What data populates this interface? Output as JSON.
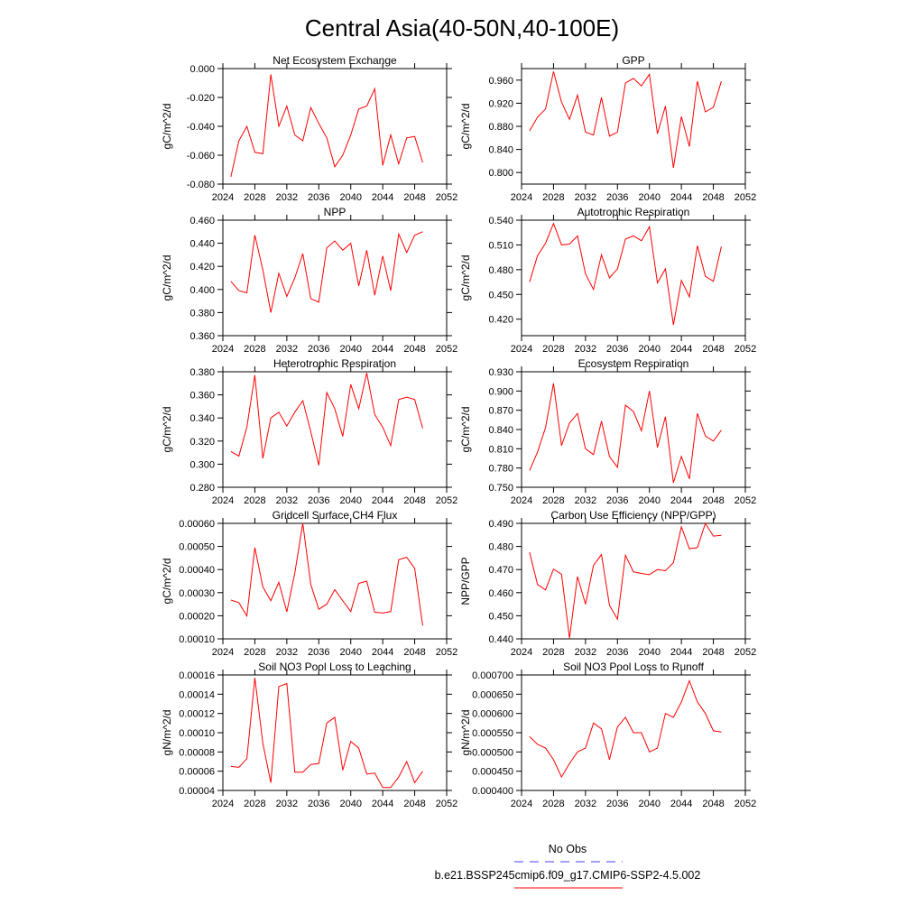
{
  "figure": {
    "title": "Central Asia(40-50N,40-100E)"
  },
  "colors": {
    "series_line": "#ff0000",
    "obs_line": "#4040ff",
    "frame": "#000000"
  },
  "legend": {
    "entries": [
      {
        "label": "No Obs",
        "style": "dashed",
        "color": "#4040ff"
      },
      {
        "label": "b.e21.BSSP245cmip6.f09_g17.CMIP6-SSP2-4.5.002",
        "style": "solid",
        "color": "#ff0000"
      }
    ]
  },
  "chart_data": [
    {
      "type": "line",
      "title": "Net Ecosystem Exchange",
      "ylabel": "gC/m^2/d",
      "xlim": [
        2024,
        2052
      ],
      "ylim": [
        -0.08,
        0.0
      ],
      "xticks": [
        2024,
        2028,
        2032,
        2036,
        2040,
        2044,
        2048,
        2052
      ],
      "yticks": [
        -0.08,
        -0.06,
        -0.04,
        -0.02,
        0.0
      ],
      "ytick_labels": [
        "-0.080",
        "-0.060",
        "-0.040",
        "-0.020",
        "0.000"
      ],
      "x": [
        2025,
        2026,
        2027,
        2028,
        2029,
        2030,
        2031,
        2032,
        2033,
        2034,
        2035,
        2036,
        2037,
        2038,
        2039,
        2040,
        2041,
        2042,
        2043,
        2044,
        2045,
        2046,
        2047,
        2048,
        2049
      ],
      "series": [
        {
          "name": "b.e21.BSSP245cmip6.f09_g17.CMIP6-SSP2-4.5.002",
          "values": [
            -0.075,
            -0.05,
            -0.04,
            -0.058,
            -0.059,
            -0.004,
            -0.04,
            -0.026,
            -0.046,
            -0.05,
            -0.027,
            -0.038,
            -0.048,
            -0.068,
            -0.06,
            -0.046,
            -0.028,
            -0.026,
            -0.014,
            -0.067,
            -0.046,
            -0.066,
            -0.048,
            -0.047,
            -0.065
          ]
        }
      ]
    },
    {
      "type": "line",
      "title": "GPP",
      "ylabel": "gC/m^2/d",
      "xlim": [
        2024,
        2052
      ],
      "ylim": [
        0.78,
        0.98
      ],
      "xticks": [
        2024,
        2028,
        2032,
        2036,
        2040,
        2044,
        2048,
        2052
      ],
      "yticks": [
        0.8,
        0.84,
        0.88,
        0.92,
        0.96
      ],
      "ytick_labels": [
        "0.800",
        "0.840",
        "0.880",
        "0.920",
        "0.960"
      ],
      "x": [
        2025,
        2026,
        2027,
        2028,
        2029,
        2030,
        2031,
        2032,
        2033,
        2034,
        2035,
        2036,
        2037,
        2038,
        2039,
        2040,
        2041,
        2042,
        2043,
        2044,
        2045,
        2046,
        2047,
        2048,
        2049
      ],
      "series": [
        {
          "name": "b.e21.BSSP245cmip6.f09_g17.CMIP6-SSP2-4.5.002",
          "values": [
            0.872,
            0.896,
            0.91,
            0.975,
            0.922,
            0.892,
            0.934,
            0.87,
            0.865,
            0.93,
            0.863,
            0.87,
            0.955,
            0.963,
            0.95,
            0.97,
            0.867,
            0.915,
            0.808,
            0.897,
            0.845,
            0.958,
            0.905,
            0.913,
            0.958
          ]
        }
      ]
    },
    {
      "type": "line",
      "title": "NPP",
      "ylabel": "gC/m^2/d",
      "xlim": [
        2024,
        2052
      ],
      "ylim": [
        0.36,
        0.46
      ],
      "xticks": [
        2024,
        2028,
        2032,
        2036,
        2040,
        2044,
        2048,
        2052
      ],
      "yticks": [
        0.36,
        0.38,
        0.4,
        0.42,
        0.44,
        0.46
      ],
      "ytick_labels": [
        "0.360",
        "0.380",
        "0.400",
        "0.420",
        "0.440",
        "0.460"
      ],
      "x": [
        2025,
        2026,
        2027,
        2028,
        2029,
        2030,
        2031,
        2032,
        2033,
        2034,
        2035,
        2036,
        2037,
        2038,
        2039,
        2040,
        2041,
        2042,
        2043,
        2044,
        2045,
        2046,
        2047,
        2048,
        2049
      ],
      "series": [
        {
          "name": "b.e21.BSSP245cmip6.f09_g17.CMIP6-SSP2-4.5.002",
          "values": [
            0.407,
            0.399,
            0.397,
            0.447,
            0.417,
            0.38,
            0.414,
            0.394,
            0.41,
            0.431,
            0.392,
            0.389,
            0.436,
            0.442,
            0.434,
            0.44,
            0.403,
            0.434,
            0.395,
            0.429,
            0.399,
            0.448,
            0.432,
            0.447,
            0.45
          ]
        }
      ]
    },
    {
      "type": "line",
      "title": "Autotrophic Respiration",
      "ylabel": "gC/m^2/d",
      "xlim": [
        2024,
        2052
      ],
      "ylim": [
        0.4,
        0.54
      ],
      "xticks": [
        2024,
        2028,
        2032,
        2036,
        2040,
        2044,
        2048,
        2052
      ],
      "yticks": [
        0.42,
        0.45,
        0.48,
        0.51,
        0.54
      ],
      "ytick_labels": [
        "0.420",
        "0.450",
        "0.480",
        "0.510",
        "0.540"
      ],
      "x": [
        2025,
        2026,
        2027,
        2028,
        2029,
        2030,
        2031,
        2032,
        2033,
        2034,
        2035,
        2036,
        2037,
        2038,
        2039,
        2040,
        2041,
        2042,
        2043,
        2044,
        2045,
        2046,
        2047,
        2048,
        2049
      ],
      "series": [
        {
          "name": "b.e21.BSSP245cmip6.f09_g17.CMIP6-SSP2-4.5.002",
          "values": [
            0.465,
            0.497,
            0.512,
            0.536,
            0.51,
            0.511,
            0.521,
            0.475,
            0.456,
            0.498,
            0.47,
            0.481,
            0.517,
            0.521,
            0.515,
            0.532,
            0.464,
            0.481,
            0.413,
            0.467,
            0.447,
            0.509,
            0.472,
            0.466,
            0.508
          ]
        }
      ]
    },
    {
      "type": "line",
      "title": "Heterotrophic Respiration",
      "ylabel": "gC/m^2/d",
      "xlim": [
        2024,
        2052
      ],
      "ylim": [
        0.28,
        0.38
      ],
      "xticks": [
        2024,
        2028,
        2032,
        2036,
        2040,
        2044,
        2048,
        2052
      ],
      "yticks": [
        0.28,
        0.3,
        0.32,
        0.34,
        0.36,
        0.38
      ],
      "ytick_labels": [
        "0.280",
        "0.300",
        "0.320",
        "0.340",
        "0.360",
        "0.380"
      ],
      "x": [
        2025,
        2026,
        2027,
        2028,
        2029,
        2030,
        2031,
        2032,
        2033,
        2034,
        2035,
        2036,
        2037,
        2038,
        2039,
        2040,
        2041,
        2042,
        2043,
        2044,
        2045,
        2046,
        2047,
        2048,
        2049
      ],
      "series": [
        {
          "name": "b.e21.BSSP245cmip6.f09_g17.CMIP6-SSP2-4.5.002",
          "values": [
            0.311,
            0.307,
            0.332,
            0.377,
            0.305,
            0.34,
            0.345,
            0.333,
            0.345,
            0.355,
            0.328,
            0.299,
            0.362,
            0.348,
            0.324,
            0.369,
            0.348,
            0.379,
            0.343,
            0.332,
            0.316,
            0.356,
            0.358,
            0.356,
            0.331
          ]
        }
      ]
    },
    {
      "type": "line",
      "title": "Ecosystem Respiration",
      "ylabel": "gC/m^2/d",
      "xlim": [
        2024,
        2052
      ],
      "ylim": [
        0.75,
        0.93
      ],
      "xticks": [
        2024,
        2028,
        2032,
        2036,
        2040,
        2044,
        2048,
        2052
      ],
      "yticks": [
        0.75,
        0.78,
        0.81,
        0.84,
        0.87,
        0.9,
        0.93
      ],
      "ytick_labels": [
        "0.750",
        "0.780",
        "0.810",
        "0.840",
        "0.870",
        "0.900",
        "0.930"
      ],
      "x": [
        2025,
        2026,
        2027,
        2028,
        2029,
        2030,
        2031,
        2032,
        2033,
        2034,
        2035,
        2036,
        2037,
        2038,
        2039,
        2040,
        2041,
        2042,
        2043,
        2044,
        2045,
        2046,
        2047,
        2048,
        2049
      ],
      "series": [
        {
          "name": "b.e21.BSSP245cmip6.f09_g17.CMIP6-SSP2-4.5.002",
          "values": [
            0.776,
            0.805,
            0.843,
            0.912,
            0.815,
            0.85,
            0.865,
            0.81,
            0.801,
            0.853,
            0.798,
            0.781,
            0.878,
            0.868,
            0.838,
            0.9,
            0.812,
            0.86,
            0.757,
            0.798,
            0.763,
            0.865,
            0.83,
            0.822,
            0.839
          ]
        }
      ]
    },
    {
      "type": "line",
      "title": "Gridcell Surface CH4 Flux",
      "ylabel": "gC/m^2/d",
      "xlim": [
        2024,
        2052
      ],
      "ylim": [
        0.0001,
        0.0006
      ],
      "xticks": [
        2024,
        2028,
        2032,
        2036,
        2040,
        2044,
        2048,
        2052
      ],
      "yticks": [
        0.0001,
        0.0002,
        0.0003,
        0.0004,
        0.0005,
        0.0006
      ],
      "ytick_labels": [
        "0.00010",
        "0.00020",
        "0.00030",
        "0.00040",
        "0.00050",
        "0.00060"
      ],
      "x": [
        2025,
        2026,
        2027,
        2028,
        2029,
        2030,
        2031,
        2032,
        2033,
        2034,
        2035,
        2036,
        2037,
        2038,
        2039,
        2040,
        2041,
        2042,
        2043,
        2044,
        2045,
        2046,
        2047,
        2048,
        2049
      ],
      "series": [
        {
          "name": "b.e21.BSSP245cmip6.f09_g17.CMIP6-SSP2-4.5.002",
          "values": [
            0.000268,
            0.000257,
            0.000199,
            0.000495,
            0.000325,
            0.000265,
            0.000345,
            0.000217,
            0.000385,
            0.0006,
            0.000335,
            0.000228,
            0.00025,
            0.000313,
            0.000265,
            0.000218,
            0.00034,
            0.00035,
            0.000215,
            0.000212,
            0.000218,
            0.000443,
            0.000453,
            0.000405,
            0.000157
          ]
        }
      ]
    },
    {
      "type": "line",
      "title": "Carbon Use Efficiency (NPP/GPP)",
      "ylabel": "NPP/GPP",
      "xlim": [
        2024,
        2052
      ],
      "ylim": [
        0.44,
        0.49
      ],
      "xticks": [
        2024,
        2028,
        2032,
        2036,
        2040,
        2044,
        2048,
        2052
      ],
      "yticks": [
        0.44,
        0.45,
        0.46,
        0.47,
        0.48,
        0.49
      ],
      "ytick_labels": [
        "0.440",
        "0.450",
        "0.460",
        "0.470",
        "0.480",
        "0.490"
      ],
      "x": [
        2025,
        2026,
        2027,
        2028,
        2029,
        2030,
        2031,
        2032,
        2033,
        2034,
        2035,
        2036,
        2037,
        2038,
        2039,
        2040,
        2041,
        2042,
        2043,
        2044,
        2045,
        2046,
        2047,
        2048,
        2049
      ],
      "series": [
        {
          "name": "b.e21.BSSP245cmip6.f09_g17.CMIP6-SSP2-4.5.002",
          "values": [
            0.4775,
            0.4635,
            0.4612,
            0.4702,
            0.468,
            0.4403,
            0.467,
            0.455,
            0.4718,
            0.4765,
            0.4545,
            0.4485,
            0.4762,
            0.469,
            0.4683,
            0.4678,
            0.47,
            0.4695,
            0.473,
            0.4885,
            0.479,
            0.4795,
            0.49,
            0.4845,
            0.4848
          ]
        }
      ]
    },
    {
      "type": "line",
      "title": "Soil NO3 Pool Loss to Leaching",
      "ylabel": "gN/m^2/d",
      "xlim": [
        2024,
        2052
      ],
      "ylim": [
        4e-05,
        0.00016
      ],
      "xticks": [
        2024,
        2028,
        2032,
        2036,
        2040,
        2044,
        2048,
        2052
      ],
      "yticks": [
        4e-05,
        6e-05,
        8e-05,
        0.0001,
        0.00012,
        0.00014,
        0.00016
      ],
      "ytick_labels": [
        "0.00004",
        "0.00006",
        "0.00008",
        "0.00010",
        "0.00012",
        "0.00014",
        "0.00016"
      ],
      "x": [
        2025,
        2026,
        2027,
        2028,
        2029,
        2030,
        2031,
        2032,
        2033,
        2034,
        2035,
        2036,
        2037,
        2038,
        2039,
        2040,
        2041,
        2042,
        2043,
        2044,
        2045,
        2046,
        2047,
        2048,
        2049
      ],
      "series": [
        {
          "name": "b.e21.BSSP245cmip6.f09_g17.CMIP6-SSP2-4.5.002",
          "values": [
            6.5e-05,
            6.4e-05,
            7.3e-05,
            0.000157,
            8.9e-05,
            4.8e-05,
            0.000148,
            0.000151,
            5.9e-05,
            5.9e-05,
            6.7e-05,
            6.8e-05,
            0.00011,
            0.000116,
            6.1e-05,
            9.1e-05,
            8.4e-05,
            5.7e-05,
            5.8e-05,
            4.3e-05,
            4.3e-05,
            5.4e-05,
            7e-05,
            4.8e-05,
            6e-05
          ]
        }
      ]
    },
    {
      "type": "line",
      "title": "Soil NO3 Pool Loss to Runoff",
      "ylabel": "gN/m^2/d",
      "xlim": [
        2024,
        2052
      ],
      "ylim": [
        0.0004,
        0.0007
      ],
      "xticks": [
        2024,
        2028,
        2032,
        2036,
        2040,
        2044,
        2048,
        2052
      ],
      "yticks": [
        0.0004,
        0.00045,
        0.0005,
        0.00055,
        0.0006,
        0.00065,
        0.0007
      ],
      "ytick_labels": [
        "0.000400",
        "0.000450",
        "0.000500",
        "0.000550",
        "0.000600",
        "0.000650",
        "0.000700"
      ],
      "x": [
        2025,
        2026,
        2027,
        2028,
        2029,
        2030,
        2031,
        2032,
        2033,
        2034,
        2035,
        2036,
        2037,
        2038,
        2039,
        2040,
        2041,
        2042,
        2043,
        2044,
        2045,
        2046,
        2047,
        2048,
        2049
      ],
      "series": [
        {
          "name": "b.e21.BSSP245cmip6.f09_g17.CMIP6-SSP2-4.5.002",
          "values": [
            0.00054,
            0.00052,
            0.00051,
            0.00048,
            0.000435,
            0.00047,
            0.0005,
            0.00051,
            0.000575,
            0.00056,
            0.00048,
            0.000565,
            0.00059,
            0.00055,
            0.00055,
            0.0005,
            0.00051,
            0.0006,
            0.00059,
            0.00063,
            0.000685,
            0.00063,
            0.0006,
            0.000555,
            0.000552
          ]
        }
      ]
    }
  ]
}
